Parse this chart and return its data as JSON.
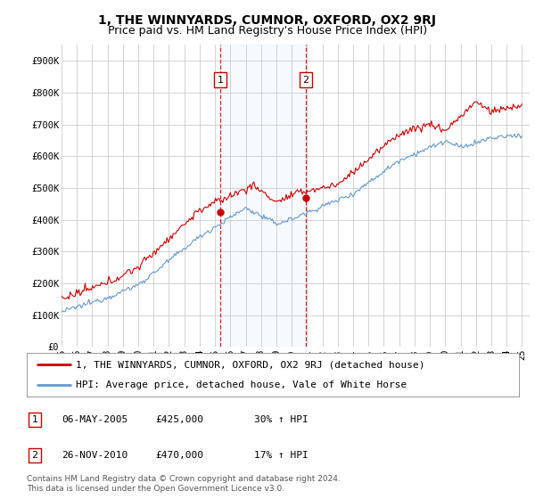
{
  "title": "1, THE WINNYARDS, CUMNOR, OXFORD, OX2 9RJ",
  "subtitle": "Price paid vs. HM Land Registry's House Price Index (HPI)",
  "ylabel_ticks": [
    "£0",
    "£100K",
    "£200K",
    "£300K",
    "£400K",
    "£500K",
    "£600K",
    "£700K",
    "£800K",
    "£900K"
  ],
  "ytick_values": [
    0,
    100000,
    200000,
    300000,
    400000,
    500000,
    600000,
    700000,
    800000,
    900000
  ],
  "ylim": [
    0,
    950000
  ],
  "xlim_start": 1995.0,
  "xlim_end": 2025.5,
  "sale1_x": 2005.35,
  "sale1_y": 425000,
  "sale1_label": "1",
  "sale2_x": 2010.9,
  "sale2_y": 470000,
  "sale2_label": "2",
  "red_line_color": "#cc0000",
  "blue_line_color": "#6699cc",
  "vline_color": "#cc0000",
  "shade_color": "#ddeeff",
  "grid_color": "#cccccc",
  "background_color": "#ffffff",
  "legend_line1": "1, THE WINNYARDS, CUMNOR, OXFORD, OX2 9RJ (detached house)",
  "legend_line2": "HPI: Average price, detached house, Vale of White Horse",
  "table_row1": [
    "1",
    "06-MAY-2005",
    "£425,000",
    "30% ↑ HPI"
  ],
  "table_row2": [
    "2",
    "26-NOV-2010",
    "£470,000",
    "17% ↑ HPI"
  ],
  "footer": "Contains HM Land Registry data © Crown copyright and database right 2024.\nThis data is licensed under the Open Government Licence v3.0.",
  "title_fontsize": 10,
  "subtitle_fontsize": 9,
  "tick_fontsize": 7.5,
  "legend_fontsize": 8,
  "table_fontsize": 8,
  "footer_fontsize": 6.5
}
